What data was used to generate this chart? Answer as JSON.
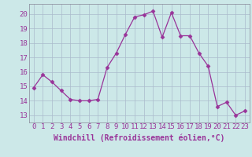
{
  "x": [
    0,
    1,
    2,
    3,
    4,
    5,
    6,
    7,
    8,
    9,
    10,
    11,
    12,
    13,
    14,
    15,
    16,
    17,
    18,
    19,
    20,
    21,
    22,
    23
  ],
  "y": [
    14.9,
    15.8,
    15.3,
    14.7,
    14.1,
    14.0,
    14.0,
    14.1,
    16.3,
    17.3,
    18.6,
    19.8,
    19.95,
    20.2,
    18.4,
    20.1,
    18.5,
    18.5,
    17.3,
    16.4,
    13.6,
    13.9,
    13.0,
    13.3
  ],
  "line_color": "#993399",
  "marker": "D",
  "marker_size": 2.5,
  "bg_color": "#cce8e8",
  "grid_color": "#aabbcc",
  "xlabel": "Windchill (Refroidissement éolien,°C)",
  "xlabel_color": "#993399",
  "xlabel_fontsize": 7,
  "tick_color": "#993399",
  "tick_fontsize": 6.5,
  "ylim": [
    12.5,
    20.7
  ],
  "yticks": [
    13,
    14,
    15,
    16,
    17,
    18,
    19,
    20
  ],
  "xlim": [
    -0.5,
    23.5
  ],
  "xticks": [
    0,
    1,
    2,
    3,
    4,
    5,
    6,
    7,
    8,
    9,
    10,
    11,
    12,
    13,
    14,
    15,
    16,
    17,
    18,
    19,
    20,
    21,
    22,
    23
  ]
}
